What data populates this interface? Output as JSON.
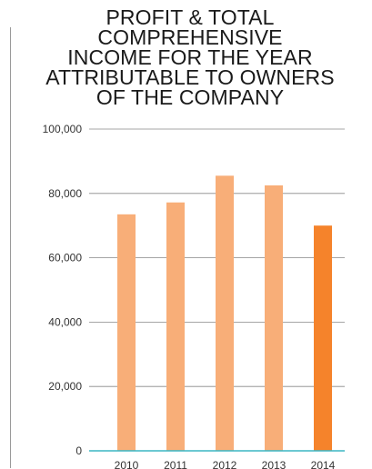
{
  "chart_data": {
    "type": "bar",
    "title_lines": [
      "PROFIT & TOTAL COMPREHENSIVE",
      "INCOME FOR THE YEAR",
      "ATTRIBUTABLE TO OWNERS",
      "OF THE COMPANY"
    ],
    "categories": [
      "2010",
      "2011",
      "2012",
      "2013",
      "2014"
    ],
    "values": [
      73500,
      77200,
      85500,
      82500,
      70000
    ],
    "ylim": [
      0,
      100000
    ],
    "yticks": [
      0,
      20000,
      40000,
      60000,
      80000,
      100000
    ],
    "ytick_labels": [
      "0",
      "20,000",
      "40,000",
      "60,000",
      "80,000",
      "100,000"
    ],
    "grid": true,
    "colors": {
      "bar": "#F8AE78",
      "highlight_bar": "#F5832B",
      "grid": "#888888",
      "baseline": "#3BB5C4"
    },
    "highlight_category": "2014"
  }
}
